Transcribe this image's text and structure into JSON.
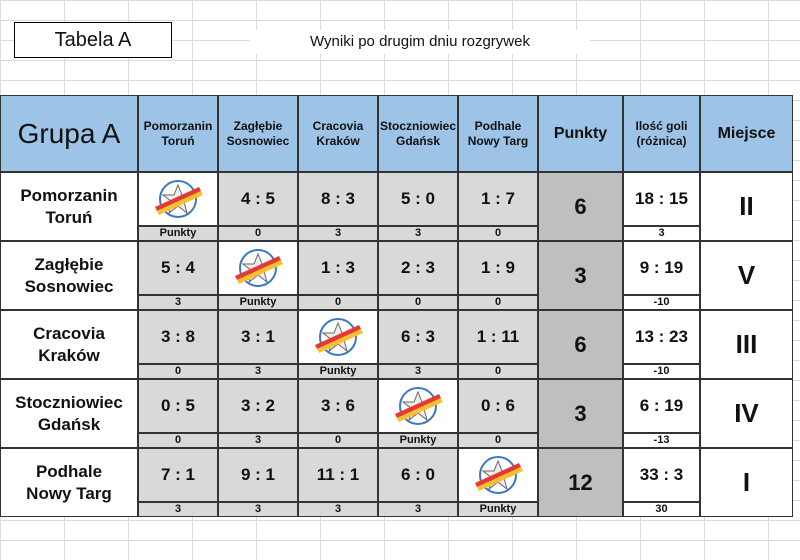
{
  "header": {
    "label": "Tabela A",
    "subtitle": "Wyniki po drugim dniu rozgrywek"
  },
  "table": {
    "corner": "Grupa A",
    "columns": [
      "Pomorzanin Toruń",
      "Zagłębie Sosnowiec",
      "Cracovia Kraków",
      "Stoczniowiec Gdańsk",
      "Podhale Nowy Targ"
    ],
    "points_header": "Punkty",
    "goals_header": "Ilość goli (różnica)",
    "place_header": "Miejsce",
    "rows": [
      {
        "team": "Pomorzanin Toruń",
        "results": [
          null,
          "4 : 5",
          "8 : 3",
          "5 : 0",
          "1 : 7"
        ],
        "match_points": [
          "Punkty",
          0,
          3,
          3,
          0
        ],
        "points": 6,
        "goals": "18 : 15",
        "diff": 3,
        "place": "II"
      },
      {
        "team": "Zagłębie Sosnowiec",
        "results": [
          "5 : 4",
          null,
          "1 : 3",
          "2 : 3",
          "1 : 9"
        ],
        "match_points": [
          3,
          "Punkty",
          0,
          0,
          0
        ],
        "points": 3,
        "goals": "9 : 19",
        "diff": -10,
        "place": "V"
      },
      {
        "team": "Cracovia Kraków",
        "results": [
          "3 : 8",
          "3 : 1",
          null,
          "6 : 3",
          "1 : 11"
        ],
        "match_points": [
          0,
          3,
          "Punkty",
          3,
          0
        ],
        "points": 6,
        "goals": "13 : 23",
        "diff": -10,
        "place": "III"
      },
      {
        "team": "Stoczniowiec Gdańsk",
        "results": [
          "0 : 5",
          "3 : 2",
          "3 : 6",
          null,
          "0 : 6"
        ],
        "match_points": [
          0,
          3,
          0,
          "Punkty",
          0
        ],
        "points": 3,
        "goals": "6 : 19",
        "diff": -13,
        "place": "IV"
      },
      {
        "team": "Podhale Nowy Targ",
        "results": [
          "7 : 1",
          "9 : 1",
          "11 : 1",
          "6 : 0",
          null
        ],
        "match_points": [
          3,
          3,
          3,
          3,
          "Punkty"
        ],
        "points": 12,
        "goals": "33 : 3",
        "diff": 30,
        "place": "I"
      }
    ]
  }
}
